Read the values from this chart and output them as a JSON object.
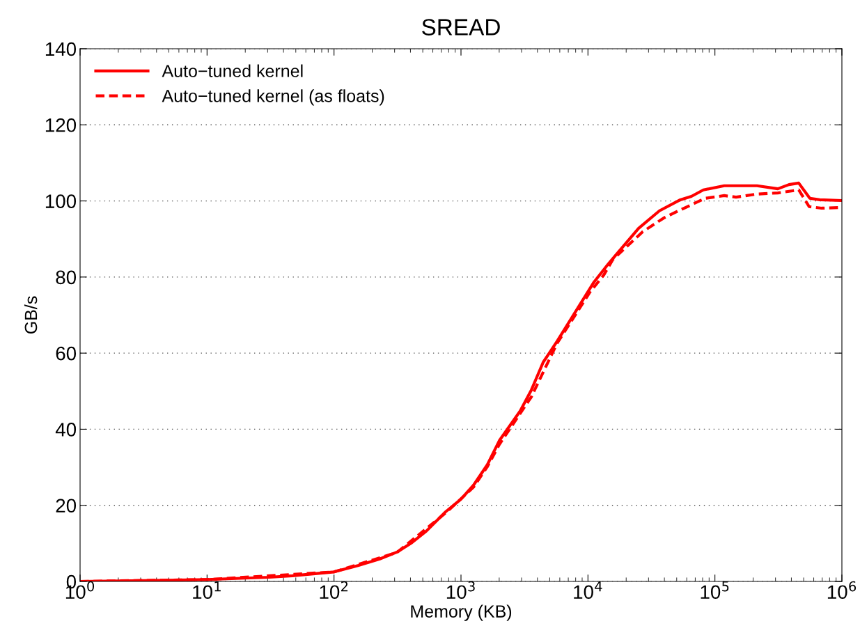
{
  "chart_data": {
    "type": "line",
    "title": "SREAD",
    "xlabel": "Memory (KB)",
    "ylabel": "GB/s",
    "log": "x",
    "grid": "y",
    "legend": "top left",
    "marker": "none",
    "xlim": [
      1,
      1000000
    ],
    "ylim": [
      0,
      140
    ],
    "xticks": [
      {
        "value": 1,
        "label": "10$^{0}$"
      },
      {
        "value": 10,
        "label": "10$^{1}$"
      },
      {
        "value": 100,
        "label": "10$^{2}$"
      },
      {
        "value": 1000,
        "label": "10$^{3}$"
      },
      {
        "value": 10000,
        "label": "10$^{4}$"
      },
      {
        "value": 100000,
        "label": "10$^{5}$"
      },
      {
        "value": 1000000,
        "label": "10$^{6}$"
      }
    ],
    "yticks": [
      0,
      20,
      40,
      60,
      80,
      100,
      120,
      140
    ],
    "series": [
      {
        "name": "Auto−tuned kernel",
        "color": "#ff0000",
        "line_style": "solid",
        "x": [
          1,
          3.16,
          10,
          31,
          47,
          100,
          156,
          229,
          313,
          403,
          532,
          757,
          1000,
          1256,
          1615,
          2005,
          2926,
          3581,
          4440,
          5715,
          8337,
          11170,
          14360,
          16300,
          25060,
          36550,
          53400,
          65300,
          81100,
          118400,
          214200,
          313000,
          383000,
          457000,
          559000,
          668000,
          1000000
        ],
        "values": [
          0,
          0.2,
          0.5,
          1.1,
          1.5,
          2.5,
          4.2,
          5.9,
          7.7,
          10.0,
          13.2,
          18.3,
          21.6,
          25.3,
          30.7,
          37.0,
          44.8,
          50.3,
          57.6,
          63.1,
          71.9,
          78.7,
          83.3,
          85.5,
          92.8,
          97.4,
          100.3,
          101.2,
          102.9,
          104.0,
          104.0,
          103.2,
          104.3,
          104.7,
          100.7,
          100.3,
          100.1
        ]
      },
      {
        "name": "Auto−tuned kernel (as floats)",
        "color": "#ff0000",
        "line_style": "dashed",
        "x": [
          1,
          10,
          100,
          313,
          757,
          1256,
          1615,
          2005,
          3581,
          5715,
          10350,
          13300,
          15700,
          27000,
          39450,
          55500,
          84100,
          118400,
          146600,
          214200,
          313000,
          457000,
          552000,
          693000,
          1000000
        ],
        "values": [
          0,
          0.5,
          2.5,
          7.6,
          18.0,
          24.8,
          30.2,
          36.0,
          48.5,
          62.6,
          76.0,
          80.5,
          84.6,
          91.9,
          95.5,
          97.9,
          100.7,
          101.4,
          101.0,
          101.8,
          102.1,
          102.9,
          98.5,
          98.1,
          98.3
        ]
      }
    ]
  }
}
